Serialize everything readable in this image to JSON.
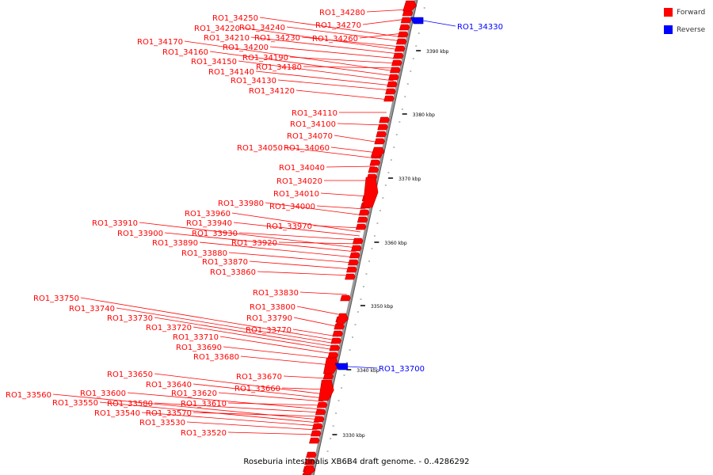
{
  "title": "Roseburia intestinalis XB6B4 draft genome. - 0..4286292",
  "legend": [
    {
      "label": "Forward",
      "color": "#ff0000"
    },
    {
      "label": "Reverse",
      "color": "#0000ff"
    }
  ],
  "colors": {
    "forward": "#ff0000",
    "reverse": "#0000ff",
    "backbone": "#999999"
  },
  "scale_ticks": [
    "3390 kbp",
    "3380 kbp",
    "3370 kbp",
    "3360 kbp",
    "3350 kbp",
    "3340 kbp",
    "3330 kbp"
  ],
  "forward_genes": [
    "RO1_34280",
    "RO1_34270",
    "RO1_34260",
    "RO1_34250",
    "RO1_34240",
    "RO1_34230",
    "RO1_34220",
    "RO1_34210",
    "RO1_34200",
    "RO1_34190",
    "RO1_34180",
    "RO1_34170",
    "RO1_34160",
    "RO1_34150",
    "RO1_34140",
    "RO1_34130",
    "RO1_34120",
    "RO1_34110",
    "RO1_34100",
    "RO1_34070",
    "RO1_34060",
    "RO1_34050",
    "RO1_34040",
    "RO1_34020",
    "RO1_34010",
    "RO1_34000",
    "RO1_33980",
    "RO1_33970",
    "RO1_33960",
    "RO1_33940",
    "RO1_33930",
    "RO1_33920",
    "RO1_33910",
    "RO1_33900",
    "RO1_33890",
    "RO1_33880",
    "RO1_33870",
    "RO1_33860",
    "RO1_33830",
    "RO1_33800",
    "RO1_33790",
    "RO1_33770",
    "RO1_33750",
    "RO1_33740",
    "RO1_33730",
    "RO1_33720",
    "RO1_33710",
    "RO1_33690",
    "RO1_33680",
    "RO1_33670",
    "RO1_33660",
    "RO1_33650",
    "RO1_33640",
    "RO1_33620",
    "RO1_33610",
    "RO1_33600",
    "RO1_33580",
    "RO1_33570",
    "RO1_33560",
    "RO1_33550",
    "RO1_33540",
    "RO1_33530",
    "RO1_33520"
  ],
  "reverse_genes": [
    "RO1_34330",
    "RO1_33700"
  ]
}
